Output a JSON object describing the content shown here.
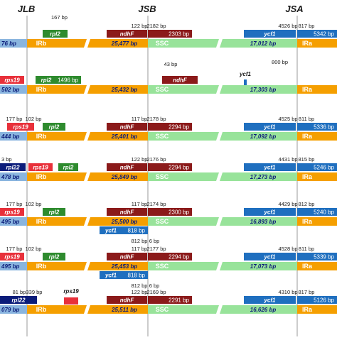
{
  "headers": {
    "jlb": "JLB",
    "jsb": "JSB",
    "jsa": "JSA"
  },
  "colors": {
    "irb": "#f59f00",
    "ssc": "#98e39a",
    "ira": "#f59f00",
    "irb_box": "#8ab5df",
    "ssc_box": "#98e39a",
    "ira_box": "#f59f00",
    "gene_navy": "#0b1c7a",
    "gene_red": "#e8303a",
    "gene_green": "#2e8b2e",
    "gene_darkred": "#8b1a1a",
    "gene_blue": "#1f6fbf",
    "boundary_line": "#999999",
    "text_dark": "#1a1a1a",
    "length_text": "#0b1c7a"
  },
  "rows": [
    {
      "irb_label": "IRb",
      "irb_len": "76 bp",
      "ssc_label": "SSC",
      "ssc_len": "25,477 bp",
      "ira_label": "IRa",
      "ira_len": "17,012 bp",
      "genes": [
        {
          "name": "rpl2",
          "color": "gene_green"
        },
        {
          "name": "ndhF",
          "color": "gene_darkred"
        },
        {
          "name": "2303 bp",
          "color": "gene_darkred"
        },
        {
          "name": "ycf1",
          "color": "gene_blue"
        },
        {
          "name": "5342 bp",
          "color": "gene_blue"
        }
      ],
      "notes": [
        "167 bp",
        "122 bp",
        "2182 bp",
        "4526 bp",
        "817 bp"
      ]
    },
    {
      "irb_label": "IRb",
      "irb_len": "502 bp",
      "ssc_label": "SSC",
      "ssc_len": "25,432 bp",
      "ira_label": "IRa",
      "ira_len": "17,303 bp",
      "genes": [
        {
          "name": "rps19",
          "color": "gene_red"
        },
        {
          "name": "rpl2",
          "color": "gene_green"
        },
        {
          "name": "1496 bp",
          "color": "gene_green"
        },
        {
          "name": "ndhF",
          "color": "gene_darkred"
        },
        {
          "name": "ycf1",
          "color": "gene_blue"
        }
      ],
      "notes": [
        "43 bp",
        "800 bp"
      ]
    },
    {
      "irb_label": "IRb",
      "irb_len": "444 bp",
      "ssc_label": "SSC",
      "ssc_len": "25,401 bp",
      "ira_label": "IRa",
      "ira_len": "17,092 bp",
      "genes": [
        {
          "name": "rps19",
          "color": "gene_red"
        },
        {
          "name": "rpl2",
          "color": "gene_green"
        },
        {
          "name": "ndhF",
          "color": "gene_darkred"
        },
        {
          "name": "2294 bp",
          "color": "gene_darkred"
        },
        {
          "name": "ycf1",
          "color": "gene_blue"
        },
        {
          "name": "5336 bp",
          "color": "gene_blue"
        }
      ],
      "notes": [
        "177 bp",
        "102 bp",
        "117 bp",
        "2178 bp",
        "4525 bp",
        "811 bp"
      ]
    },
    {
      "irb_label": "IRb",
      "irb_len": "478 bp",
      "ssc_label": "SSC",
      "ssc_len": "25,849 bp",
      "ira_label": "IRa",
      "ira_len": "17,273 bp",
      "genes": [
        {
          "name": "rpl22",
          "color": "gene_navy"
        },
        {
          "name": "rps19",
          "color": "gene_red"
        },
        {
          "name": "rpl2",
          "color": "gene_green"
        },
        {
          "name": "ndhF",
          "color": "gene_darkred"
        },
        {
          "name": "2294 bp",
          "color": "gene_darkred"
        },
        {
          "name": "ycf1",
          "color": "gene_blue"
        },
        {
          "name": "5246 bp",
          "color": "gene_blue"
        }
      ],
      "notes": [
        "3 bp",
        "122 bp",
        "2176 bp",
        "4431 bp",
        "815 bp"
      ]
    },
    {
      "irb_label": "IRb",
      "irb_len": "495 bp",
      "ssc_label": "SSC",
      "ssc_len": "25,500 bp",
      "ira_label": "IRa",
      "ira_len": "16,893 bp",
      "genes": [
        {
          "name": "rps19",
          "color": "gene_red"
        },
        {
          "name": "rpl2",
          "color": "gene_green"
        },
        {
          "name": "ndhF",
          "color": "gene_darkred"
        },
        {
          "name": "2300 bp",
          "color": "gene_darkred"
        },
        {
          "name": "ycf1",
          "color": "gene_blue"
        },
        {
          "name": "818 bp",
          "color": "gene_blue"
        },
        {
          "name": "ycf1",
          "color": "gene_blue"
        },
        {
          "name": "5240 bp",
          "color": "gene_blue"
        }
      ],
      "notes": [
        "177 bp",
        "102 bp",
        "117 bp",
        "2174 bp",
        "812 bp",
        "6 bp",
        "4429 bp",
        "812 bp"
      ]
    },
    {
      "irb_label": "IRb",
      "irb_len": "495 bp",
      "ssc_label": "SSC",
      "ssc_len": "25,453 bp",
      "ira_label": "IRa",
      "ira_len": "17,073 bp",
      "genes": [
        {
          "name": "rps19",
          "color": "gene_red"
        },
        {
          "name": "rpl2",
          "color": "gene_green"
        },
        {
          "name": "ndhF",
          "color": "gene_darkred"
        },
        {
          "name": "2294 bp",
          "color": "gene_darkred"
        },
        {
          "name": "ycf1",
          "color": "gene_blue"
        },
        {
          "name": "818 bp",
          "color": "gene_blue"
        },
        {
          "name": "ycf1",
          "color": "gene_blue"
        },
        {
          "name": "5339 bp",
          "color": "gene_blue"
        }
      ],
      "notes": [
        "177 bp",
        "102 bp",
        "117 bp",
        "2177 bp",
        "812 bp",
        "6 bp",
        "4528 bp",
        "811 bp"
      ]
    },
    {
      "irb_label": "IRb",
      "irb_len": "079 bp",
      "ssc_label": "SSC",
      "ssc_len": "25,511 bp",
      "ira_label": "IRa",
      "ira_len": "16,626 bp",
      "genes": [
        {
          "name": "rpl22",
          "color": "gene_navy"
        },
        {
          "name": "rps19",
          "color": "gene_red"
        },
        {
          "name": "ndhF",
          "color": "gene_darkred"
        },
        {
          "name": "2291 bp",
          "color": "gene_darkred"
        },
        {
          "name": "ycf1",
          "color": "gene_blue"
        },
        {
          "name": "5126 bp",
          "color": "gene_blue"
        }
      ],
      "notes": [
        "81 bp",
        "339 bp",
        "122 bp",
        "2169 bp",
        "4310 bp",
        "817 bp"
      ]
    }
  ]
}
